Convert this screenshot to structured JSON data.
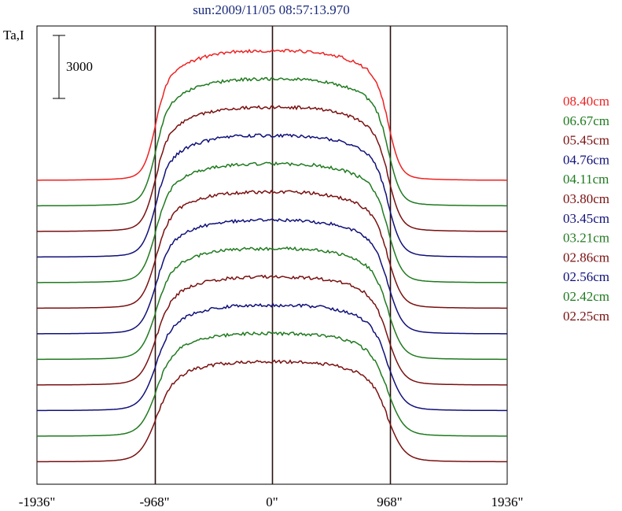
{
  "chart_data": {
    "type": "line",
    "title": "sun:2009/11/05 08:57:13.970",
    "ylabel": "Ta,I",
    "scale_bar_label": "3000",
    "xlim": [
      -1936,
      1936
    ],
    "x_ticks": [
      {
        "value": -1936,
        "label": "-1936\""
      },
      {
        "value": -968,
        "label": "-968\""
      },
      {
        "value": 0,
        "label": "0\""
      },
      {
        "value": 968,
        "label": "968\""
      },
      {
        "value": 1936,
        "label": "1936\""
      }
    ],
    "vertical_lines": [
      -968,
      0,
      968
    ],
    "series": [
      {
        "name": "08.40cm",
        "color": "#ee2222"
      },
      {
        "name": "06.67cm",
        "color": "#1f7a1f"
      },
      {
        "name": "05.45cm",
        "color": "#7a1010"
      },
      {
        "name": "04.76cm",
        "color": "#10107a"
      },
      {
        "name": "04.11cm",
        "color": "#1f7a1f"
      },
      {
        "name": "03.80cm",
        "color": "#7a1010"
      },
      {
        "name": "03.45cm",
        "color": "#10107a"
      },
      {
        "name": "03.21cm",
        "color": "#1f7a1f"
      },
      {
        "name": "02.86cm",
        "color": "#7a1010"
      },
      {
        "name": "02.56cm",
        "color": "#10107a"
      },
      {
        "name": "02.42cm",
        "color": "#1f7a1f"
      },
      {
        "name": "02.25cm",
        "color": "#7a1010"
      }
    ]
  }
}
